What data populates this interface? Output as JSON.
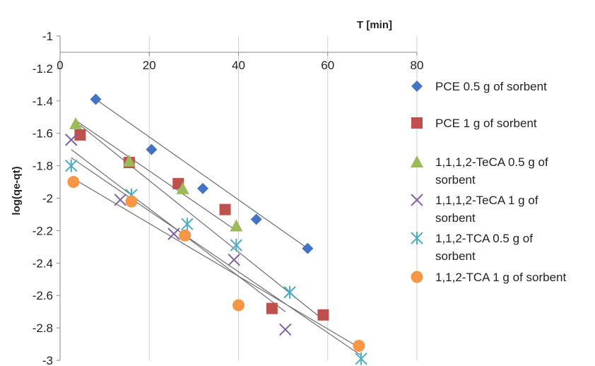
{
  "chart_data": {
    "type": "scatter",
    "xlabel": "T [min]",
    "ylabel": "log(qe-qt)",
    "xlim": [
      0,
      80
    ],
    "ylim": [
      -3,
      -1
    ],
    "x_ticks": [
      0,
      20,
      40,
      60,
      80
    ],
    "y_ticks": [
      -1,
      -1.2,
      -1.4,
      -1.6,
      -1.8,
      -2,
      -2.2,
      -2.4,
      -2.6,
      -2.8,
      -3
    ],
    "x_tick_labels": [
      "0",
      "20",
      "40",
      "60",
      "80"
    ],
    "y_tick_labels": [
      "-1",
      "-1.2",
      "-1.4",
      "-1.6",
      "-1.8",
      "-2",
      "-2.2",
      "-2.4",
      "-2.6",
      "-2.8",
      "-3"
    ],
    "grid": "vertical",
    "legend_position": "right",
    "series": [
      {
        "name": "PCE 0.5 g of sorbent",
        "legend_lines": [
          "PCE 0.5 g of sorbent"
        ],
        "marker": "diamond",
        "color": "#4472C4",
        "x": [
          8,
          20.5,
          32,
          44,
          55.5
        ],
        "y": [
          -1.39,
          -1.7,
          -1.94,
          -2.13,
          -2.31
        ],
        "trend": [
          [
            8,
            -1.39
          ],
          [
            55.5,
            -2.31
          ]
        ]
      },
      {
        "name": "PCE 1 g of sorbent",
        "legend_lines": [
          "PCE 1 g of sorbent"
        ],
        "marker": "square",
        "color": "#C0504D",
        "x": [
          4.5,
          15.5,
          26.5,
          37,
          47.5,
          59
        ],
        "y": [
          -1.61,
          -1.78,
          -1.91,
          -2.07,
          -2.68,
          -2.72
        ],
        "trend": [
          [
            4.5,
            -1.55
          ],
          [
            59,
            -2.75
          ]
        ]
      },
      {
        "name": "1,1,1,2-TeCA 0.5 g of sorbent",
        "legend_lines": [
          "1,1,1,2-TeCA 0.5 g of",
          "sorbent"
        ],
        "marker": "triangle",
        "color": "#9BBB59",
        "x": [
          3.5,
          15.5,
          27.5,
          39.5
        ],
        "y": [
          -1.54,
          -1.77,
          -1.94,
          -2.17
        ],
        "trend": [
          [
            3.5,
            -1.52
          ],
          [
            39.5,
            -2.2
          ]
        ]
      },
      {
        "name": "1,1,1,2-TeCA 1 g of sorbent",
        "legend_lines": [
          "1,1,1,2-TeCA 1 g of",
          "sorbent"
        ],
        "marker": "x",
        "color": "#8064A2",
        "x": [
          2.5,
          13.5,
          25.5,
          39,
          50.5
        ],
        "y": [
          -1.64,
          -2.01,
          -2.22,
          -2.38,
          -2.81
        ],
        "trend": [
          [
            2.5,
            -1.7
          ],
          [
            50.5,
            -2.7
          ]
        ]
      },
      {
        "name": "1,1,2-TCA 0.5 g of sorbent",
        "legend_lines": [
          "1,1,2-TCA 0.5 g of",
          "sorbent"
        ],
        "marker": "asterisk",
        "color": "#4BACC6",
        "x": [
          2.5,
          16,
          28.5,
          39.5,
          51.5,
          67.5
        ],
        "y": [
          -1.8,
          -1.98,
          -2.16,
          -2.29,
          -2.58,
          -2.99
        ],
        "trend": [
          [
            2.5,
            -1.75
          ],
          [
            67.5,
            -2.97
          ]
        ]
      },
      {
        "name": "1,1,2-TCA 1 g of sorbent",
        "legend_lines": [
          "1,1,2-TCA 1 g of sorbent"
        ],
        "marker": "circle",
        "color": "#F79646",
        "x": [
          3,
          16,
          28,
          40,
          67
        ],
        "y": [
          -1.9,
          -2.02,
          -2.23,
          -2.66,
          -2.91
        ],
        "trend": [
          [
            3,
            -1.88
          ],
          [
            67,
            -2.92
          ]
        ]
      }
    ]
  }
}
